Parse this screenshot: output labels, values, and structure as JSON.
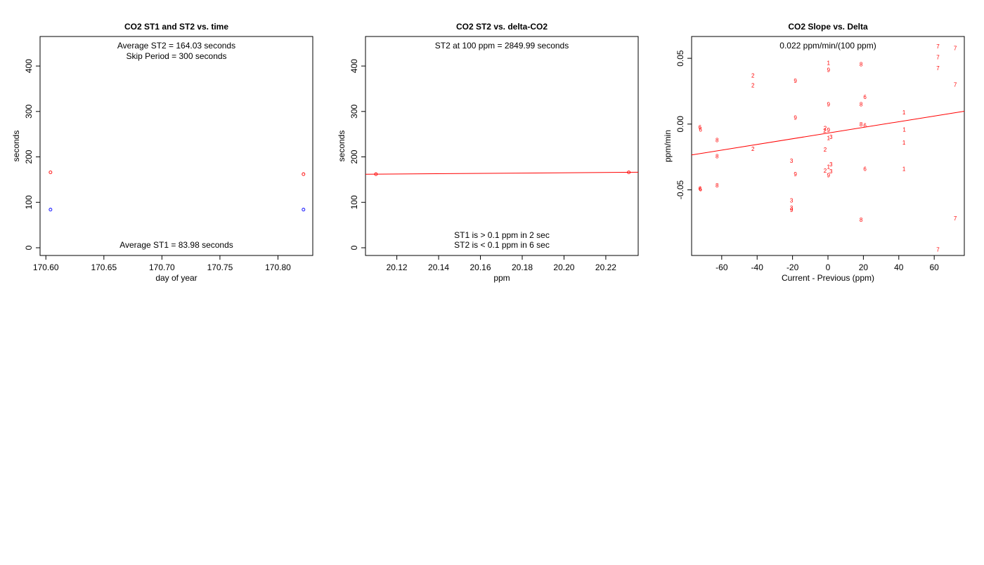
{
  "chart_data": [
    {
      "type": "scatter",
      "title": "CO2 ST1 and ST2 vs. time",
      "xlabel": "day of year",
      "ylabel": "seconds",
      "xlim": [
        170.595,
        170.83
      ],
      "ylim": [
        -17,
        465
      ],
      "xticks": [
        170.6,
        170.65,
        170.7,
        170.75,
        170.8
      ],
      "yticks": [
        0,
        100,
        200,
        300,
        400
      ],
      "grid": false,
      "annotations": {
        "avg_st2": "Average ST2 =  164.03  seconds",
        "skip_period": "Skip Period =  300  seconds",
        "avg_st1": "Average ST1 =  83.98  seconds"
      },
      "series": [
        {
          "color": "#ff0000",
          "x": [
            170.604,
            170.822
          ],
          "y": [
            166,
            162
          ]
        },
        {
          "color": "#0000ff",
          "x": [
            170.604,
            170.822
          ],
          "y": [
            84,
            84
          ]
        }
      ]
    },
    {
      "type": "scatter",
      "title": "CO2 ST2 vs. delta-CO2",
      "xlabel": "ppm",
      "ylabel": "seconds",
      "xlim": [
        20.105,
        20.2355
      ],
      "ylim": [
        -17,
        465
      ],
      "xticks": [
        20.12,
        20.14,
        20.16,
        20.18,
        20.2,
        20.22
      ],
      "yticks": [
        0,
        100,
        200,
        300,
        400
      ],
      "grid": false,
      "annotations": {
        "st2_at_100": "ST2 at 100 ppm =  2849.99  seconds",
        "st1_note": "ST1 is > 0.1 ppm in 2 sec",
        "st2_note": "ST2 is < 0.1 ppm in 6 sec"
      },
      "series": [
        {
          "color": "#ff0000",
          "x": [
            20.11,
            20.231
          ],
          "y": [
            162,
            166
          ]
        }
      ],
      "fit_line": {
        "color": "#ff0000",
        "x": [
          20.105,
          20.2355
        ],
        "y": [
          161.8,
          166.2
        ]
      }
    },
    {
      "type": "scatter",
      "title": "CO2 Slope vs. Delta",
      "xlabel": "Current - Previous (ppm)",
      "ylabel": "ppm/min",
      "xlim": [
        -77,
        77
      ],
      "ylim": [
        -0.0999,
        0.0666
      ],
      "xticks": [
        -60,
        -40,
        -20,
        0,
        20,
        40,
        60
      ],
      "yticks": [
        -0.05,
        0.0,
        0.05
      ],
      "ytick_labels": [
        "-0.05",
        "0.00",
        "0.05"
      ],
      "grid": false,
      "annotations": {
        "slope_text": "0.022  ppm/min/(100 ppm)"
      },
      "marker": "text",
      "points": [
        {
          "x": 0.3,
          "y": 0.0466,
          "label": "1"
        },
        {
          "x": 0.3,
          "y": 0.0413,
          "label": "9"
        },
        {
          "x": 18.7,
          "y": 0.0455,
          "label": "8"
        },
        {
          "x": 62.1,
          "y": 0.059,
          "label": "7"
        },
        {
          "x": 71.9,
          "y": 0.0578,
          "label": "7"
        },
        {
          "x": 62.1,
          "y": 0.0509,
          "label": "7"
        },
        {
          "x": 62.1,
          "y": 0.0427,
          "label": "7"
        },
        {
          "x": 71.9,
          "y": 0.0301,
          "label": "7"
        },
        {
          "x": -42.4,
          "y": 0.0369,
          "label": "2"
        },
        {
          "x": -42.4,
          "y": 0.0296,
          "label": "2"
        },
        {
          "x": -18.4,
          "y": 0.033,
          "label": "9"
        },
        {
          "x": 20.9,
          "y": 0.0207,
          "label": "6"
        },
        {
          "x": 0.3,
          "y": 0.0152,
          "label": "9"
        },
        {
          "x": 18.7,
          "y": 0.0152,
          "label": "8"
        },
        {
          "x": 42.9,
          "y": 0.009,
          "label": "1"
        },
        {
          "x": -18.4,
          "y": 0.005,
          "label": "9"
        },
        {
          "x": -72.3,
          "y": -0.0022,
          "label": "6"
        },
        {
          "x": -72.0,
          "y": -0.004,
          "label": "6"
        },
        {
          "x": -1.6,
          "y": -0.003,
          "label": "2"
        },
        {
          "x": -1.8,
          "y": -0.005,
          "label": "2"
        },
        {
          "x": 0.3,
          "y": -0.0045,
          "label": "9"
        },
        {
          "x": 18.7,
          "y": 0.0,
          "label": "8"
        },
        {
          "x": 20.9,
          "y": -0.001,
          "label": "6"
        },
        {
          "x": 43.1,
          "y": -0.004,
          "label": "1"
        },
        {
          "x": 0.3,
          "y": -0.0104,
          "label": "1"
        },
        {
          "x": 1.7,
          "y": -0.0098,
          "label": "3"
        },
        {
          "x": -62.6,
          "y": -0.012,
          "label": "8"
        },
        {
          "x": 42.9,
          "y": -0.0141,
          "label": "1"
        },
        {
          "x": -42.4,
          "y": -0.0187,
          "label": "2"
        },
        {
          "x": -1.6,
          "y": -0.0193,
          "label": "2"
        },
        {
          "x": -62.6,
          "y": -0.0244,
          "label": "8"
        },
        {
          "x": -20.6,
          "y": -0.0278,
          "label": "3"
        },
        {
          "x": 1.7,
          "y": -0.0306,
          "label": "3"
        },
        {
          "x": 0.3,
          "y": -0.0324,
          "label": "1"
        },
        {
          "x": 20.9,
          "y": -0.034,
          "label": "6"
        },
        {
          "x": 42.9,
          "y": -0.034,
          "label": "1"
        },
        {
          "x": -1.6,
          "y": -0.0353,
          "label": "2"
        },
        {
          "x": 1.7,
          "y": -0.0359,
          "label": "3"
        },
        {
          "x": -18.4,
          "y": -0.0381,
          "label": "9"
        },
        {
          "x": 0.3,
          "y": -0.0387,
          "label": "9"
        },
        {
          "x": -62.6,
          "y": -0.0466,
          "label": "8"
        },
        {
          "x": -72.3,
          "y": -0.0489,
          "label": "6"
        },
        {
          "x": -72.0,
          "y": -0.0494,
          "label": "6"
        },
        {
          "x": -20.6,
          "y": -0.0579,
          "label": "3"
        },
        {
          "x": -20.6,
          "y": -0.0636,
          "label": "3"
        },
        {
          "x": -20.6,
          "y": -0.0652,
          "label": "9"
        },
        {
          "x": 18.7,
          "y": -0.0726,
          "label": "8"
        },
        {
          "x": 71.9,
          "y": -0.0716,
          "label": "7"
        },
        {
          "x": 62.1,
          "y": -0.0953,
          "label": "7"
        }
      ],
      "fit_line": {
        "color": "#ff0000",
        "x": [
          -77,
          77
        ],
        "y": [
          -0.02345,
          0.00979
        ]
      }
    }
  ]
}
